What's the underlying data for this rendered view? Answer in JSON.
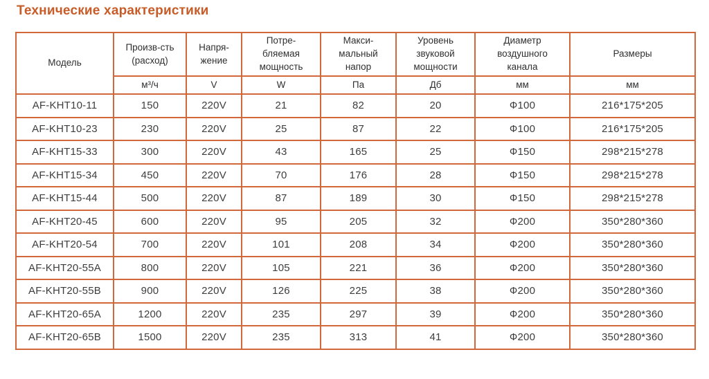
{
  "page": {
    "title": "Технические характеристики"
  },
  "colors": {
    "title_accent": "#c85c28",
    "table_border": "#d2683a",
    "text": "#3d3d3d"
  },
  "table": {
    "columns": [
      {
        "label": "Модель",
        "unit": null
      },
      {
        "label": "Произв-сть\n(расход)",
        "unit": "м³/ч"
      },
      {
        "label": "Напря-\nжение",
        "unit": "V"
      },
      {
        "label": "Потре-\nбляемая\nмощность",
        "unit": "W"
      },
      {
        "label": "Макси-\nмальный\nнапор",
        "unit": "Па"
      },
      {
        "label": "Уровень\nзвуковой\nмощности",
        "unit": "Дб"
      },
      {
        "label": "Диаметр\nвоздушного\nканала",
        "unit": "мм"
      },
      {
        "label": "Размеры",
        "unit": "мм"
      }
    ],
    "rows": [
      [
        "AF-KHT10-11",
        "150",
        "220V",
        "21",
        "82",
        "20",
        "Ф100",
        "216*175*205"
      ],
      [
        "AF-KHT10-23",
        "230",
        "220V",
        "25",
        "87",
        "22",
        "Ф100",
        "216*175*205"
      ],
      [
        "AF-KHT15-33",
        "300",
        "220V",
        "43",
        "165",
        "25",
        "Ф150",
        "298*215*278"
      ],
      [
        "AF-KHT15-34",
        "450",
        "220V",
        "70",
        "176",
        "28",
        "Ф150",
        "298*215*278"
      ],
      [
        "AF-KHT15-44",
        "500",
        "220V",
        "87",
        "189",
        "30",
        "Ф150",
        "298*215*278"
      ],
      [
        "AF-KHT20-45",
        "600",
        "220V",
        "95",
        "205",
        "32",
        "Ф200",
        "350*280*360"
      ],
      [
        "AF-KHT20-54",
        "700",
        "220V",
        "101",
        "208",
        "34",
        "Ф200",
        "350*280*360"
      ],
      [
        "AF-KHT20-55A",
        "800",
        "220V",
        "105",
        "221",
        "36",
        "Ф200",
        "350*280*360"
      ],
      [
        "AF-KHT20-55B",
        "900",
        "220V",
        "126",
        "225",
        "38",
        "Ф200",
        "350*280*360"
      ],
      [
        "AF-KHT20-65A",
        "1200",
        "220V",
        "235",
        "297",
        "39",
        "Ф200",
        "350*280*360"
      ],
      [
        "AF-KHT20-65B",
        "1500",
        "220V",
        "235",
        "313",
        "41",
        "Ф200",
        "350*280*360"
      ]
    ]
  }
}
